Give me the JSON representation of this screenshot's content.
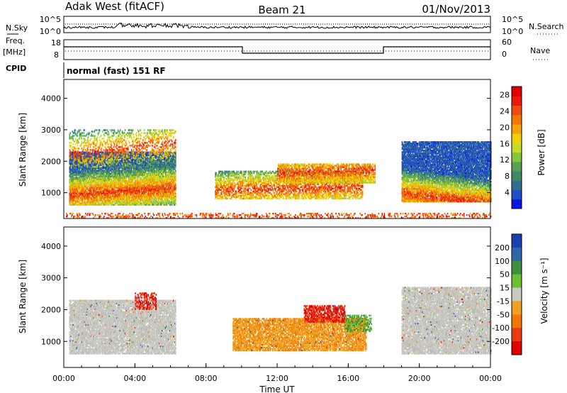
{
  "header": {
    "station": "Adak West (fitACF)",
    "beam": "Beam 21",
    "date": "01/Nov/2013"
  },
  "top_panels": {
    "nsky_label": "N.Sky",
    "nsky_ticks": [
      "10^5",
      "10^0"
    ],
    "nsearch_label": "N.Search",
    "nsearch_ticks": [
      "10^5",
      "10^0"
    ],
    "freq_label": "Freq.",
    "freq_unit": "[MHz]",
    "freq_ticks": [
      "18",
      "8"
    ],
    "nave_label": "Nave",
    "nave_ticks": [
      "60",
      "0"
    ],
    "cpid_label": "CPID",
    "cpid_text": "normal (fast) 151 RF"
  },
  "chart_data": [
    {
      "type": "heatmap",
      "name": "power",
      "ylabel": "Slant Range [km]",
      "yticks": [
        1000,
        2000,
        3000,
        4000
      ],
      "ylim": [
        180,
        4600
      ],
      "xlim": [
        0,
        24
      ],
      "colorbar": {
        "label": "Power [dB]",
        "ticks": [
          "28",
          "24",
          "20",
          "16",
          "12",
          "8",
          "4"
        ],
        "colors": [
          "#0a14e6",
          "#1f4fc4",
          "#2f6f8e",
          "#3f8a66",
          "#5aa052",
          "#88c43a",
          "#c6d82a",
          "#f0d000",
          "#f4a400",
          "#f07800",
          "#ee4c0c",
          "#e8180c",
          "#e00000"
        ],
        "min": 0,
        "max": 30
      },
      "echo_bands": [
        {
          "t0": 0.3,
          "t1": 6.3,
          "r0": 600,
          "r1": 2300,
          "core": 900,
          "slope": 40,
          "density": 0.85
        },
        {
          "t0": 0.3,
          "t1": 6.3,
          "r0": 1800,
          "r1": 3000,
          "core": 2200,
          "slope": 60,
          "density": 0.3
        },
        {
          "t0": 8.5,
          "t1": 16.8,
          "r0": 800,
          "r1": 1700,
          "core": 1050,
          "slope": 15,
          "density": 0.55
        },
        {
          "t0": 12.0,
          "t1": 17.5,
          "r0": 1300,
          "r1": 1900,
          "core": 1600,
          "slope": 20,
          "density": 0.6
        },
        {
          "t0": 19.0,
          "t1": 24.0,
          "r0": 700,
          "r1": 2600,
          "core": 950,
          "slope": -60,
          "density": 0.85
        },
        {
          "t0": 0.0,
          "t1": 24.0,
          "r0": 180,
          "r1": 320,
          "core": 250,
          "slope": 0,
          "density": 0.25
        }
      ]
    },
    {
      "type": "heatmap",
      "name": "velocity",
      "ylabel": "Slant Range [km]",
      "xlabel": "Time UT",
      "xticks": [
        "00:00",
        "04:00",
        "08:00",
        "12:00",
        "16:00",
        "20:00",
        "00:00"
      ],
      "yticks": [
        1000,
        2000,
        3000,
        4000
      ],
      "ylim": [
        180,
        4600
      ],
      "xlim": [
        0,
        24
      ],
      "colorbar": {
        "label": "Velocity [m s⁻¹]",
        "ticks": [
          "200",
          "100",
          "50",
          "15",
          "-15",
          "-50",
          "-100",
          "-200"
        ],
        "colors": [
          "#1a3fb0",
          "#2f66a8",
          "#3c8f3c",
          "#6cc030",
          "#c8c8c0",
          "#f0a020",
          "#f07800",
          "#e83c10",
          "#e00000"
        ]
      },
      "echo_bands": [
        {
          "t0": 0.3,
          "t1": 6.3,
          "r0": 600,
          "r1": 2300,
          "v": "gray",
          "density": 0.8
        },
        {
          "t0": 4.0,
          "t1": 5.2,
          "r0": 2000,
          "r1": 2500,
          "v": "red",
          "density": 0.4
        },
        {
          "t0": 9.5,
          "t1": 17.0,
          "r0": 700,
          "r1": 1700,
          "v": "orange",
          "density": 0.7
        },
        {
          "t0": 13.5,
          "t1": 15.8,
          "r0": 1600,
          "r1": 2100,
          "v": "red",
          "density": 0.6
        },
        {
          "t0": 15.8,
          "t1": 17.3,
          "r0": 1300,
          "r1": 1800,
          "v": "green",
          "density": 0.5
        },
        {
          "t0": 19.0,
          "t1": 24.0,
          "r0": 600,
          "r1": 2700,
          "v": "gray",
          "density": 0.8
        }
      ]
    }
  ]
}
